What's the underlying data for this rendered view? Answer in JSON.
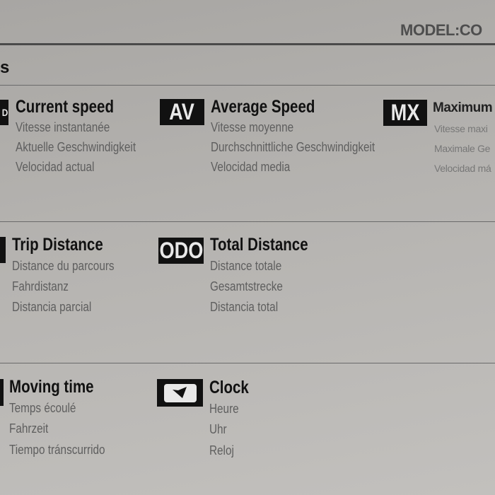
{
  "header": {
    "model_label": "MODEL:CO",
    "section_title_fragment": "s"
  },
  "functions": [
    {
      "icon_text": "D",
      "title": "Current speed",
      "lines": [
        "Vitesse instantanée",
        "Aktuelle Geschwindigkeit",
        "Velocidad actual"
      ]
    },
    {
      "icon_text": "AV",
      "title": "Average Speed",
      "lines": [
        "Vitesse moyenne",
        "Durchschnittliche Geschwindigkeit",
        "Velocidad media"
      ]
    },
    {
      "icon_text": "MX",
      "title": "Maximum",
      "lines": [
        "Vitesse maxi",
        "Maximale Ge",
        "Velocidad má"
      ]
    },
    {
      "icon_text": "",
      "title": "Trip Distance",
      "lines": [
        "Distance du parcours",
        "Fahrdistanz",
        "Distancia parcial"
      ]
    },
    {
      "icon_text": "ODO",
      "title": "Total Distance",
      "lines": [
        "Distance totale",
        "Gesamtstrecke",
        "Distancia total"
      ]
    },
    {
      "icon_text": "",
      "title": "Moving time",
      "lines": [
        "Temps écoulé",
        "Fahrzeit",
        "Tiempo tránscurrido"
      ]
    },
    {
      "icon": "clock-icon",
      "title": "Clock",
      "lines": [
        "Heure",
        "Uhr",
        "Reloj"
      ]
    }
  ]
}
